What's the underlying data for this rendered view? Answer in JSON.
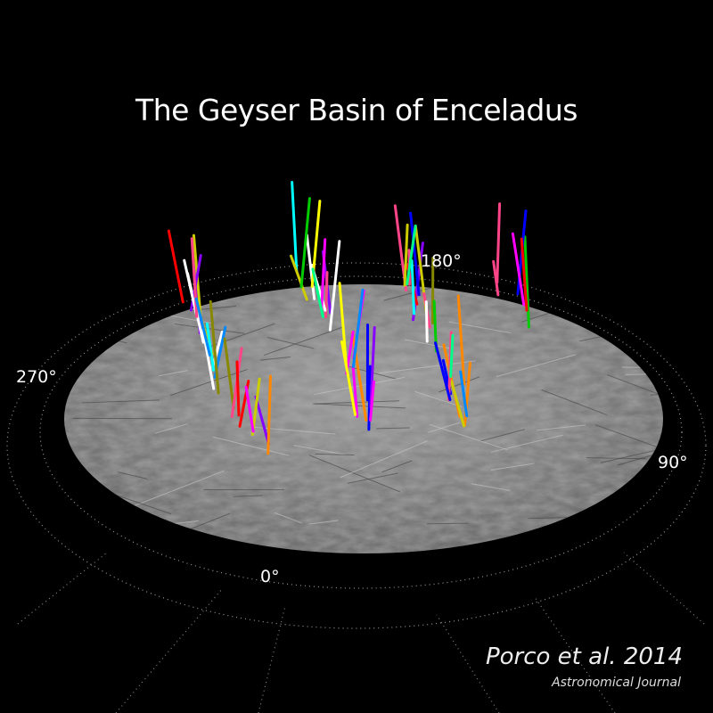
{
  "title": "The Geyser Basin of Enceladus",
  "longitude_labels": {
    "lon_180": "180°",
    "lon_270": "270°",
    "lon_90": "90°",
    "lon_0": "0°"
  },
  "credit": {
    "authors": "Porco et al. 2014",
    "journal": "Astronomical Journal"
  },
  "colors": {
    "background": "#000000",
    "surface": "#8a8a8a",
    "grid": "#bbbbbb",
    "jets": [
      "#ff0000",
      "#00cc00",
      "#0000ff",
      "#ffff00",
      "#ff00ff",
      "#00ffff",
      "#ff8800",
      "#ffffff",
      "#8800ff",
      "#00ff88",
      "#cccc00",
      "#ff4488",
      "#0088ff",
      "#888800"
    ]
  }
}
